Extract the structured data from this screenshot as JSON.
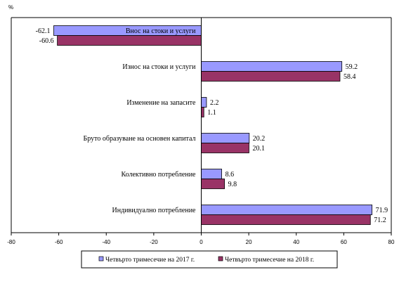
{
  "chart_data": {
    "type": "bar",
    "orientation": "horizontal",
    "ylabel": "%",
    "xlim": [
      -80,
      80
    ],
    "xticks": [
      "-80",
      "-60",
      "-40",
      "-20",
      "0",
      "20",
      "40",
      "60",
      "80"
    ],
    "grid": false,
    "legend_position": "bottom",
    "categories": [
      "Внос на стоки и услуги",
      "Износ на стоки и услуги",
      "Изменение на запасите",
      "Бруто образуване на основен капитал",
      "Колективно  потребление",
      "Индивидуално  потребление"
    ],
    "series": [
      {
        "name": "Четвърто тримесечие  на 2017 г.",
        "values": [
          -62.1,
          59.2,
          2.2,
          20.2,
          8.6,
          71.9
        ],
        "labels": [
          "-62.1",
          "59.2",
          "2.2",
          "20.2",
          "8.6",
          "71.9"
        ],
        "color": "#9999ff"
      },
      {
        "name": "Четвърто тримесечие  на 2018 г.",
        "values": [
          -60.6,
          58.4,
          1.1,
          20.1,
          9.8,
          71.2
        ],
        "labels": [
          "-60.6",
          "58.4",
          "1.1",
          "20.1",
          "9.8",
          "71.2"
        ],
        "color": "#993366"
      }
    ]
  }
}
